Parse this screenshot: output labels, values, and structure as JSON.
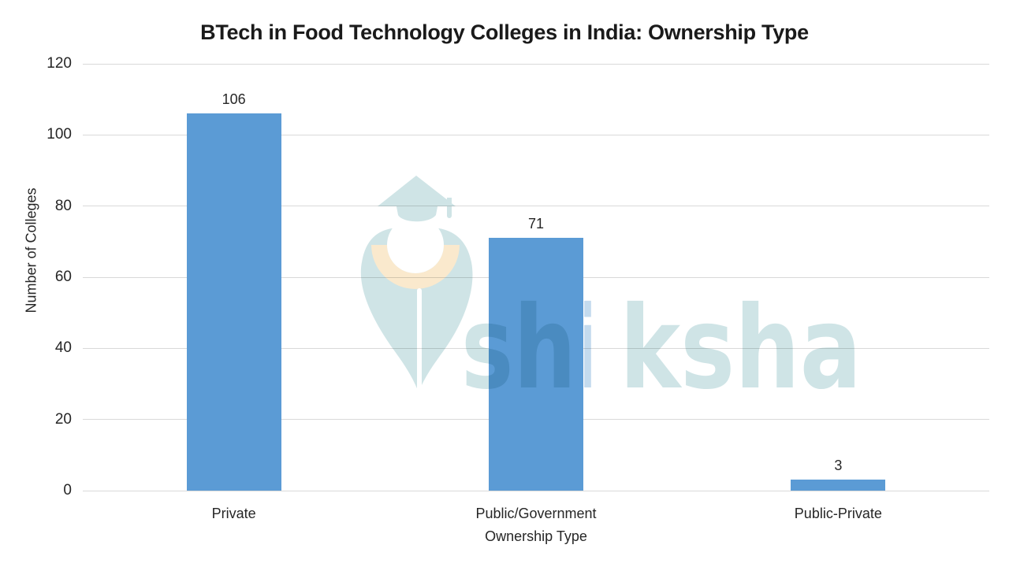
{
  "chart_data": {
    "type": "bar",
    "title": "BTech in Food Technology Colleges in India: Ownership Type",
    "categories": [
      "Private",
      "Public/Government",
      "Public-Private"
    ],
    "values": [
      106,
      71,
      3
    ],
    "xlabel": "Ownership Type",
    "ylabel": "Number of Colleges",
    "ylim": [
      0,
      120
    ],
    "yticks": [
      0,
      20,
      40,
      60,
      80,
      100,
      120
    ],
    "grid": true,
    "legend": false,
    "bar_color": "#5B9BD5",
    "grid_color": "#D9D9D9",
    "text_color": "#262626"
  },
  "watermark": {
    "brand": "shiksha",
    "segments": [
      {
        "text": "sh",
        "color": "#CFE4E6"
      },
      {
        "text": "i",
        "color": "#C4DBEE"
      },
      {
        "text": "ksha",
        "color": "#CFE4E6"
      }
    ],
    "logo_teal": "#CFE4E6",
    "logo_cream": "#FAE9CD"
  }
}
